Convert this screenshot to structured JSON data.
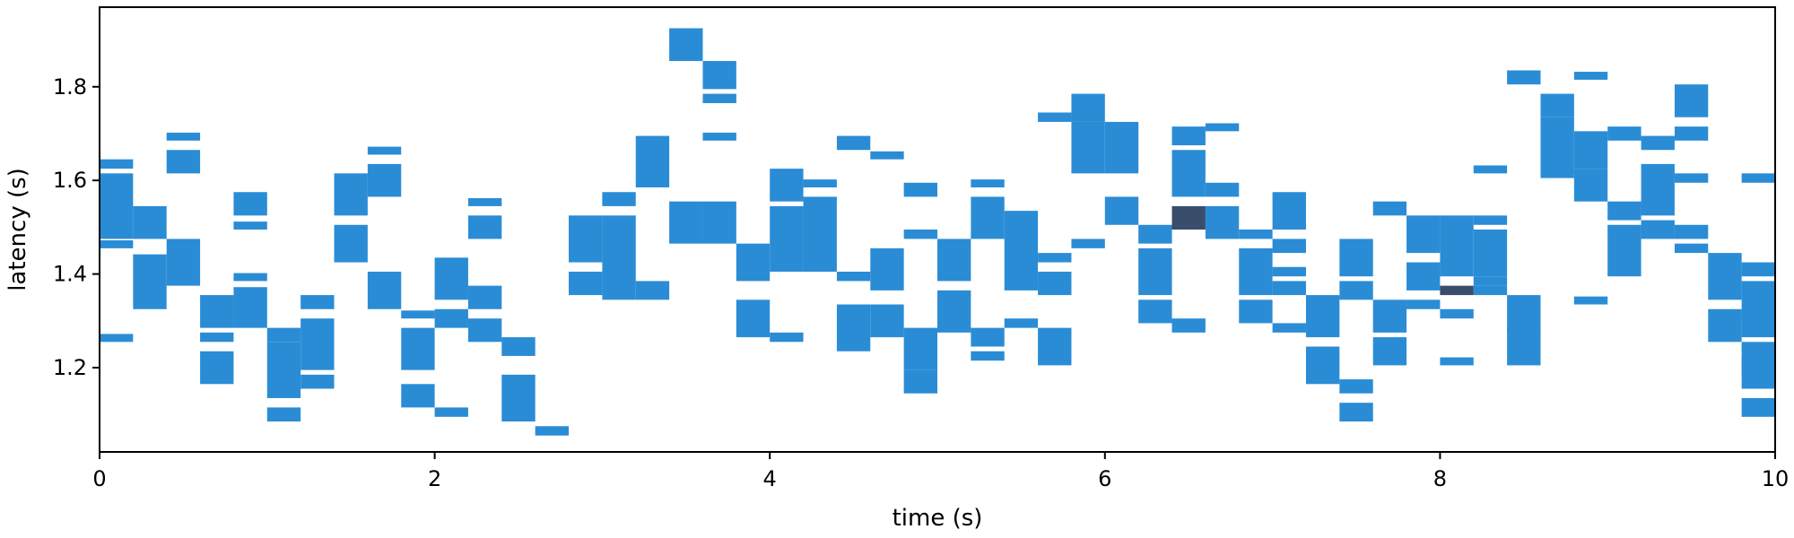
{
  "chart_data": {
    "type": "heatmap",
    "title": "",
    "xlabel": "time (s)",
    "ylabel": "latency (s)",
    "xlim": [
      0,
      10
    ],
    "ylim": [
      1.02,
      1.97
    ],
    "x_ticks": [
      0,
      2,
      4,
      6,
      8,
      10
    ],
    "x_tick_labels": [
      "0",
      "2",
      "4",
      "6",
      "8",
      "10"
    ],
    "y_ticks": [
      1.2,
      1.4,
      1.6,
      1.8
    ],
    "y_tick_labels": [
      "1.2",
      "1.4",
      "1.6",
      "1.8"
    ],
    "grid": false,
    "legend": "none",
    "x_bin_width": 0.2,
    "y_bin_height": 0.017,
    "colors": {
      "base": "#2b8cd6",
      "dense": "#3a4d6b"
    },
    "x_bin_starts": [
      0.0,
      0.2,
      0.4,
      0.6,
      0.8,
      1.0,
      1.2,
      1.4,
      1.6,
      1.8,
      2.0,
      2.2,
      2.4,
      2.6,
      2.8,
      3.0,
      3.2,
      3.4,
      3.6,
      3.8,
      4.0,
      4.2,
      4.4,
      4.6,
      4.8,
      5.0,
      5.2,
      5.4,
      5.6,
      5.8,
      6.0,
      6.2,
      6.4,
      6.6,
      6.8,
      7.0,
      7.2,
      7.4,
      7.6,
      7.8,
      8.0,
      8.2,
      8.4,
      8.6,
      8.8,
      9.0,
      9.2,
      9.4,
      9.6,
      9.8
    ],
    "y_ranges_per_bin": [
      [
        [
          1.625,
          1.645
        ],
        [
          1.475,
          1.615
        ],
        [
          1.455,
          1.472
        ],
        [
          1.255,
          1.272
        ]
      ],
      [
        [
          1.475,
          1.545
        ],
        [
          1.325,
          1.442
        ]
      ],
      [
        [
          1.685,
          1.702
        ],
        [
          1.615,
          1.665
        ],
        [
          1.375,
          1.475
        ]
      ],
      [
        [
          1.285,
          1.355
        ],
        [
          1.255,
          1.275
        ],
        [
          1.165,
          1.235
        ]
      ],
      [
        [
          1.525,
          1.575
        ],
        [
          1.495,
          1.512
        ],
        [
          1.385,
          1.402
        ],
        [
          1.285,
          1.372
        ]
      ],
      [
        [
          1.255,
          1.285
        ],
        [
          1.135,
          1.255
        ],
        [
          1.085,
          1.115
        ]
      ],
      [
        [
          1.325,
          1.355
        ],
        [
          1.195,
          1.305
        ],
        [
          1.155,
          1.185
        ]
      ],
      [
        [
          1.525,
          1.615
        ],
        [
          1.425,
          1.505
        ]
      ],
      [
        [
          1.655,
          1.672
        ],
        [
          1.565,
          1.635
        ],
        [
          1.325,
          1.405
        ]
      ],
      [
        [
          1.305,
          1.322
        ],
        [
          1.195,
          1.285
        ],
        [
          1.115,
          1.165
        ]
      ],
      [
        [
          1.345,
          1.435
        ],
        [
          1.285,
          1.325
        ],
        [
          1.095,
          1.115
        ]
      ],
      [
        [
          1.545,
          1.562
        ],
        [
          1.475,
          1.525
        ],
        [
          1.325,
          1.375
        ],
        [
          1.255,
          1.305
        ]
      ],
      [
        [
          1.225,
          1.265
        ],
        [
          1.085,
          1.185
        ]
      ],
      [
        [
          1.055,
          1.075
        ]
      ],
      [
        [
          1.425,
          1.525
        ],
        [
          1.355,
          1.405
        ]
      ],
      [
        [
          1.545,
          1.575
        ],
        [
          1.345,
          1.525
        ]
      ],
      [
        [
          1.585,
          1.695
        ],
        [
          1.345,
          1.385
        ]
      ],
      [
        [
          1.855,
          1.925
        ],
        [
          1.465,
          1.555
        ]
      ],
      [
        [
          1.795,
          1.855
        ],
        [
          1.765,
          1.785
        ],
        [
          1.685,
          1.702
        ],
        [
          1.465,
          1.555
        ]
      ],
      [
        [
          1.385,
          1.465
        ],
        [
          1.265,
          1.345
        ]
      ],
      [
        [
          1.555,
          1.625
        ],
        [
          1.405,
          1.545
        ],
        [
          1.255,
          1.275
        ]
      ],
      [
        [
          1.585,
          1.602
        ],
        [
          1.405,
          1.565
        ]
      ],
      [
        [
          1.665,
          1.695
        ],
        [
          1.385,
          1.405
        ],
        [
          1.235,
          1.335
        ]
      ],
      [
        [
          1.645,
          1.662
        ],
        [
          1.365,
          1.455
        ],
        [
          1.265,
          1.335
        ]
      ],
      [
        [
          1.565,
          1.595
        ],
        [
          1.475,
          1.495
        ],
        [
          1.195,
          1.285
        ],
        [
          1.145,
          1.195
        ]
      ],
      [
        [
          1.385,
          1.475
        ],
        [
          1.275,
          1.365
        ]
      ],
      [
        [
          1.585,
          1.602
        ],
        [
          1.475,
          1.565
        ],
        [
          1.245,
          1.285
        ],
        [
          1.215,
          1.235
        ]
      ],
      [
        [
          1.365,
          1.535
        ],
        [
          1.285,
          1.305
        ]
      ],
      [
        [
          1.725,
          1.745
        ],
        [
          1.425,
          1.445
        ],
        [
          1.355,
          1.405
        ],
        [
          1.205,
          1.285
        ]
      ],
      [
        [
          1.725,
          1.785
        ],
        [
          1.615,
          1.725
        ],
        [
          1.455,
          1.475
        ]
      ],
      [
        [
          1.615,
          1.725
        ],
        [
          1.505,
          1.565
        ]
      ],
      [
        [
          1.465,
          1.505
        ],
        [
          1.355,
          1.455
        ],
        [
          1.295,
          1.345
        ]
      ],
      [
        [
          1.675,
          1.715
        ],
        [
          1.565,
          1.665
        ],
        [
          1.275,
          1.305
        ]
      ],
      [
        [
          1.705,
          1.722
        ],
        [
          1.565,
          1.595
        ],
        [
          1.495,
          1.545
        ],
        [
          1.475,
          1.495
        ]
      ],
      [
        [
          1.475,
          1.495
        ],
        [
          1.355,
          1.455
        ],
        [
          1.295,
          1.345
        ]
      ],
      [
        [
          1.495,
          1.575
        ],
        [
          1.445,
          1.475
        ],
        [
          1.395,
          1.415
        ],
        [
          1.355,
          1.385
        ],
        [
          1.275,
          1.295
        ]
      ],
      [
        [
          1.265,
          1.355
        ],
        [
          1.165,
          1.245
        ]
      ],
      [
        [
          1.395,
          1.475
        ],
        [
          1.345,
          1.385
        ],
        [
          1.145,
          1.175
        ],
        [
          1.085,
          1.125
        ]
      ],
      [
        [
          1.525,
          1.555
        ],
        [
          1.275,
          1.345
        ],
        [
          1.205,
          1.265
        ]
      ],
      [
        [
          1.445,
          1.525
        ],
        [
          1.365,
          1.425
        ],
        [
          1.325,
          1.345
        ]
      ],
      [
        [
          1.395,
          1.525
        ],
        [
          1.305,
          1.325
        ],
        [
          1.205,
          1.222
        ]
      ],
      [
        [
          1.615,
          1.632
        ],
        [
          1.505,
          1.525
        ],
        [
          1.395,
          1.495
        ],
        [
          1.375,
          1.395
        ],
        [
          1.355,
          1.375
        ]
      ],
      [
        [
          1.805,
          1.835
        ],
        [
          1.275,
          1.355
        ],
        [
          1.205,
          1.285
        ]
      ],
      [
        [
          1.735,
          1.785
        ],
        [
          1.615,
          1.735
        ],
        [
          1.605,
          1.625
        ]
      ],
      [
        [
          1.815,
          1.832
        ],
        [
          1.625,
          1.705
        ],
        [
          1.555,
          1.625
        ],
        [
          1.335,
          1.352
        ]
      ],
      [
        [
          1.685,
          1.715
        ],
        [
          1.515,
          1.555
        ],
        [
          1.395,
          1.505
        ]
      ],
      [
        [
          1.665,
          1.695
        ],
        [
          1.525,
          1.635
        ],
        [
          1.475,
          1.515
        ]
      ],
      [
        [
          1.735,
          1.805
        ],
        [
          1.685,
          1.715
        ],
        [
          1.595,
          1.615
        ],
        [
          1.475,
          1.505
        ],
        [
          1.445,
          1.465
        ]
      ],
      [
        [
          1.345,
          1.445
        ],
        [
          1.255,
          1.325
        ]
      ],
      [
        [
          1.595,
          1.615
        ],
        [
          1.395,
          1.425
        ],
        [
          1.305,
          1.385
        ],
        [
          1.235,
          1.255
        ],
        [
          1.185,
          1.225
        ]
      ]
    ],
    "y_ranges_per_bin_extra": [
      [
        9.8,
        1.265,
        1.315
      ],
      [
        9.8,
        1.155,
        1.245
      ],
      [
        9.8,
        1.095,
        1.135
      ]
    ],
    "dense_cells": [
      [
        6.4,
        1.495,
        1.545
      ],
      [
        8.0,
        1.355,
        1.375
      ]
    ]
  }
}
